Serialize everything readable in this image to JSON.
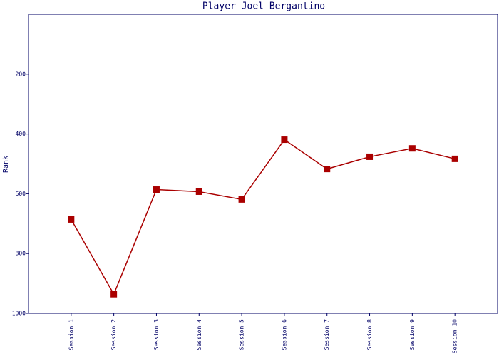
{
  "chart_data": {
    "type": "line",
    "title": "Player Joel Bergantino",
    "y_label": "Rank",
    "categories": [
      "Session 1",
      "Session 2",
      "Session 3",
      "Session 4",
      "Session 5",
      "Session 6",
      "Session 7",
      "Session 8",
      "Session 9",
      "Session 10"
    ],
    "series": [
      {
        "name": "Rank",
        "color": "#aa0000",
        "values": [
          686,
          936,
          586,
          593,
          619,
          419,
          517,
          476,
          448,
          483
        ]
      }
    ],
    "ylim": [
      1000,
      0
    ],
    "yticks": [
      200,
      400,
      600,
      800,
      1000
    ],
    "grid": false
  }
}
